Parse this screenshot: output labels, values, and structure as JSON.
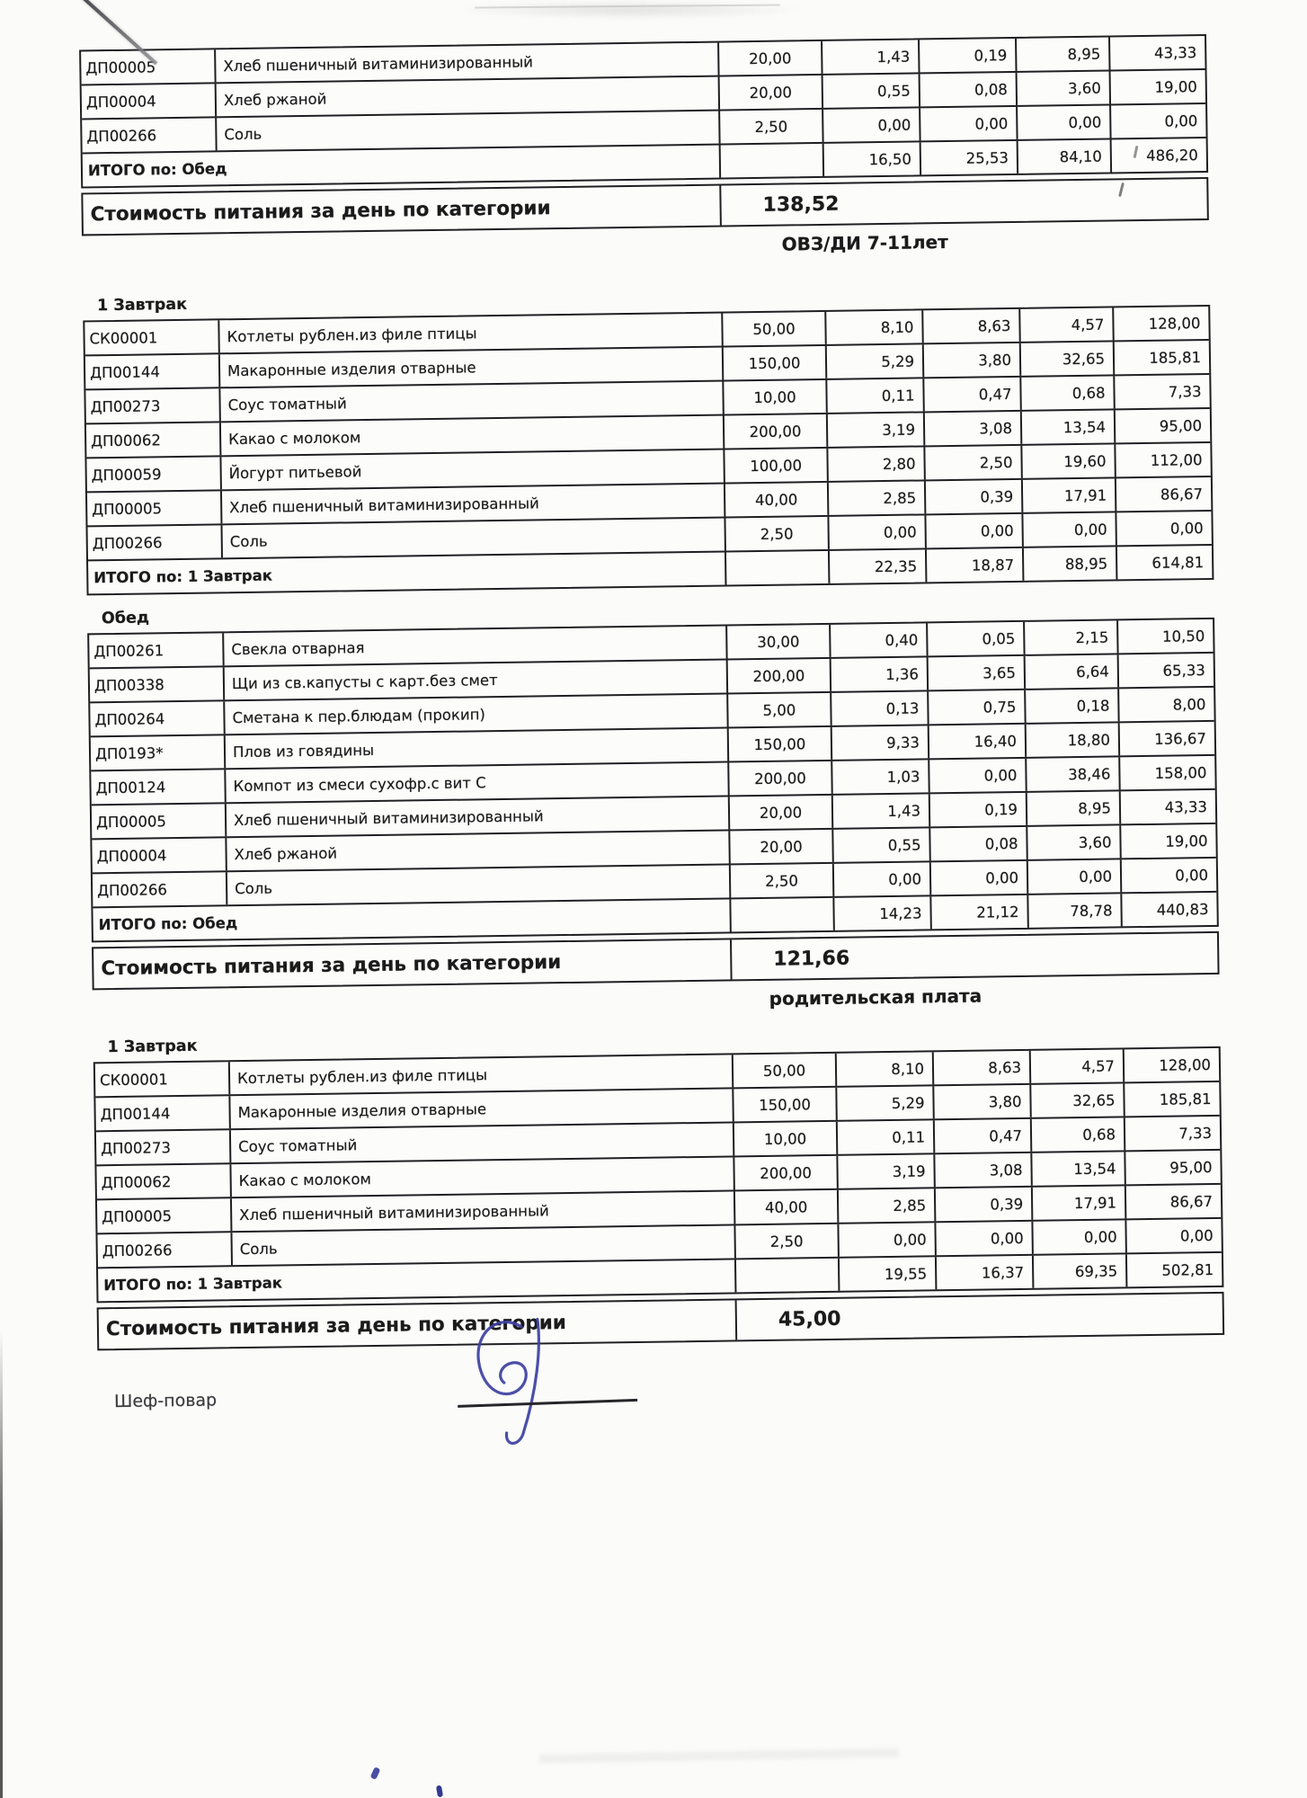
{
  "colors": {
    "signature_ink": "#3d41a2",
    "paper": "#fbfbf9",
    "table_line": "#1f1f22"
  },
  "doc": {
    "blocks": [
      {
        "kind": "table",
        "rows": [
          {
            "code": "ДП00005",
            "name": "Хлеб пшеничный витаминизированный",
            "qty": "20,00",
            "values": [
              "1,43",
              "0,19",
              "8,95",
              "43,33"
            ]
          },
          {
            "code": "ДП00004",
            "name": "Хлеб ржаной",
            "qty": "20,00",
            "values": [
              "0,55",
              "0,08",
              "3,60",
              "19,00"
            ]
          },
          {
            "code": "ДП00266",
            "name": "Соль",
            "qty": "2,50",
            "values": [
              "0,00",
              "0,00",
              "0,00",
              "0,00"
            ]
          }
        ],
        "total": {
          "label": "ИТОГО по: Обед",
          "values": [
            "16,50",
            "25,53",
            "84,10",
            "486,20"
          ]
        },
        "cost": {
          "label": "Стоимость питания за день по категории",
          "value": "138,52"
        }
      },
      {
        "kind": "category",
        "label": "ОВЗ/ДИ 7-11лет",
        "gap": "large"
      },
      {
        "kind": "meal",
        "label": "1 Завтрак"
      },
      {
        "kind": "table",
        "rows": [
          {
            "code": "СК00001",
            "name": "Котлеты рублен.из филе птицы",
            "qty": "50,00",
            "values": [
              "8,10",
              "8,63",
              "4,57",
              "128,00"
            ]
          },
          {
            "code": "ДП00144",
            "name": "Макаронные изделия отварные",
            "qty": "150,00",
            "values": [
              "5,29",
              "3,80",
              "32,65",
              "185,81"
            ]
          },
          {
            "code": "ДП00273",
            "name": "Соус томатный",
            "qty": "10,00",
            "values": [
              "0,11",
              "0,47",
              "0,68",
              "7,33"
            ]
          },
          {
            "code": "ДП00062",
            "name": "Какао с молоком",
            "qty": "200,00",
            "values": [
              "3,19",
              "3,08",
              "13,54",
              "95,00"
            ]
          },
          {
            "code": "ДП00059",
            "name": "Йогурт питьевой",
            "qty": "100,00",
            "values": [
              "2,80",
              "2,50",
              "19,60",
              "112,00"
            ]
          },
          {
            "code": "ДП00005",
            "name": "Хлеб пшеничный витаминизированный",
            "qty": "40,00",
            "values": [
              "2,85",
              "0,39",
              "17,91",
              "86,67"
            ]
          },
          {
            "code": "ДП00266",
            "name": "Соль",
            "qty": "2,50",
            "values": [
              "0,00",
              "0,00",
              "0,00",
              "0,00"
            ]
          }
        ],
        "total": {
          "label": "ИТОГО по: 1 Завтрак",
          "values": [
            "22,35",
            "18,87",
            "88,95",
            "614,81"
          ]
        }
      },
      {
        "kind": "meal",
        "label": "Обед"
      },
      {
        "kind": "table",
        "rows": [
          {
            "code": "ДП00261",
            "name": "Свекла отварная",
            "qty": "30,00",
            "values": [
              "0,40",
              "0,05",
              "2,15",
              "10,50"
            ]
          },
          {
            "code": "ДП00338",
            "name": "Щи из св.капусты с карт.без смет",
            "qty": "200,00",
            "values": [
              "1,36",
              "3,65",
              "6,64",
              "65,33"
            ]
          },
          {
            "code": "ДП00264",
            "name": "Сметана к пер.блюдам (прокип)",
            "qty": "5,00",
            "values": [
              "0,13",
              "0,75",
              "0,18",
              "8,00"
            ]
          },
          {
            "code": "ДП0193*",
            "name": "Плов из говядины",
            "qty": "150,00",
            "values": [
              "9,33",
              "16,40",
              "18,80",
              "136,67"
            ]
          },
          {
            "code": "ДП00124",
            "name": "Компот из смеси сухофр.с вит С",
            "qty": "200,00",
            "values": [
              "1,03",
              "0,00",
              "38,46",
              "158,00"
            ]
          },
          {
            "code": "ДП00005",
            "name": "Хлеб пшеничный витаминизированный",
            "qty": "20,00",
            "values": [
              "1,43",
              "0,19",
              "8,95",
              "43,33"
            ]
          },
          {
            "code": "ДП00004",
            "name": "Хлеб ржаной",
            "qty": "20,00",
            "values": [
              "0,55",
              "0,08",
              "3,60",
              "19,00"
            ]
          },
          {
            "code": "ДП00266",
            "name": "Соль",
            "qty": "2,50",
            "values": [
              "0,00",
              "0,00",
              "0,00",
              "0,00"
            ]
          }
        ],
        "total": {
          "label": "ИТОГО по: Обед",
          "values": [
            "14,23",
            "21,12",
            "78,78",
            "440,83"
          ]
        },
        "cost": {
          "label": "Стоимость питания за день по категории",
          "value": "121,66"
        }
      },
      {
        "kind": "category",
        "label": "родительская плата",
        "gap": "med"
      },
      {
        "kind": "meal",
        "label": "1 Завтрак"
      },
      {
        "kind": "table",
        "rows": [
          {
            "code": "СК00001",
            "name": "Котлеты рублен.из филе птицы",
            "qty": "50,00",
            "values": [
              "8,10",
              "8,63",
              "4,57",
              "128,00"
            ]
          },
          {
            "code": "ДП00144",
            "name": "Макаронные изделия отварные",
            "qty": "150,00",
            "values": [
              "5,29",
              "3,80",
              "32,65",
              "185,81"
            ]
          },
          {
            "code": "ДП00273",
            "name": "Соус томатный",
            "qty": "10,00",
            "values": [
              "0,11",
              "0,47",
              "0,68",
              "7,33"
            ]
          },
          {
            "code": "ДП00062",
            "name": "Какао с молоком",
            "qty": "200,00",
            "values": [
              "3,19",
              "3,08",
              "13,54",
              "95,00"
            ]
          },
          {
            "code": "ДП00005",
            "name": "Хлеб пшеничный витаминизированный",
            "qty": "40,00",
            "values": [
              "2,85",
              "0,39",
              "17,91",
              "86,67"
            ]
          },
          {
            "code": "ДП00266",
            "name": "Соль",
            "qty": "2,50",
            "values": [
              "0,00",
              "0,00",
              "0,00",
              "0,00"
            ]
          }
        ],
        "total": {
          "label": "ИТОГО по: 1 Завтрак",
          "values": [
            "19,55",
            "16,37",
            "69,35",
            "502,81"
          ]
        },
        "cost": {
          "label": "Стоимость питания за день по категории",
          "value": "45,00"
        }
      },
      {
        "kind": "signoff",
        "label": "Шеф-повар"
      }
    ]
  }
}
